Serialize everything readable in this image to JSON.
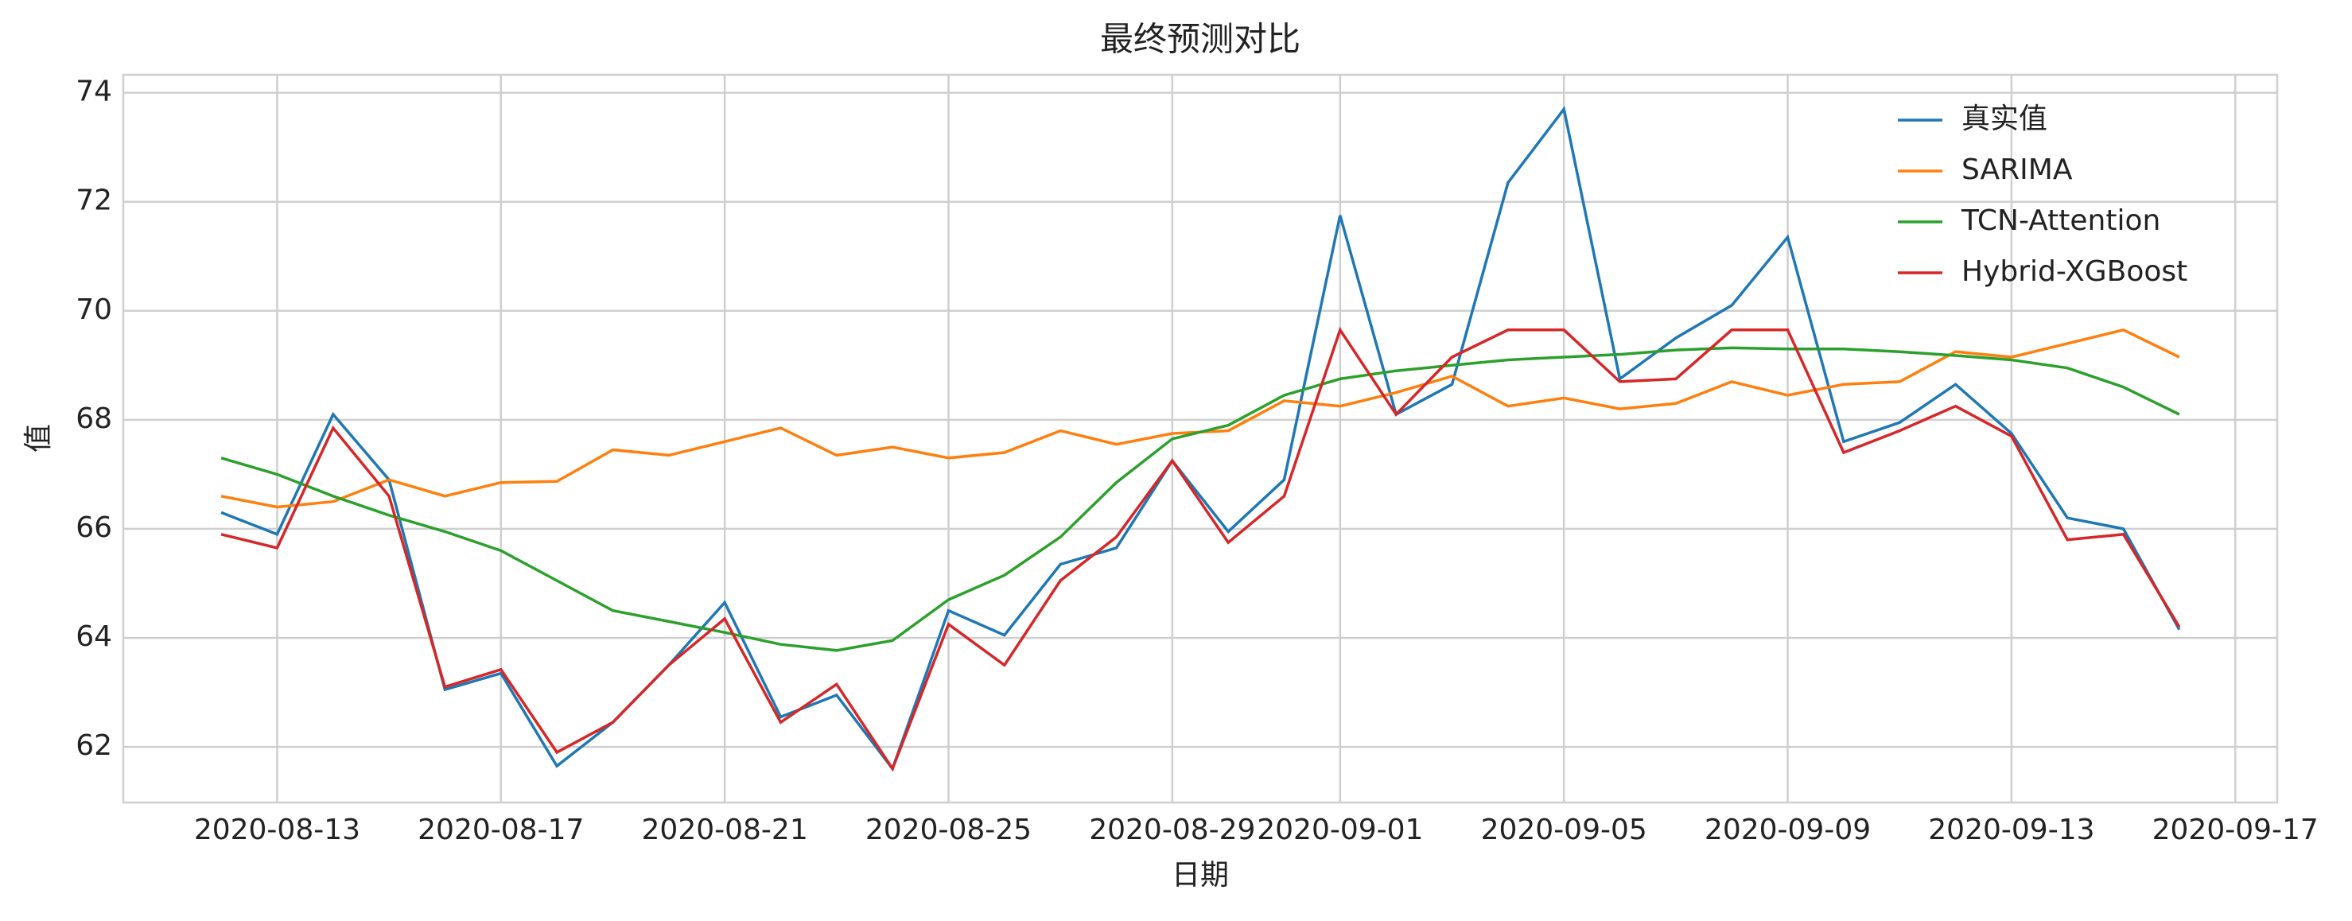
{
  "chart_data": {
    "type": "line",
    "title": "最终预测对比",
    "xlabel": "日期",
    "ylabel": "值",
    "x": [
      "2020-08-12",
      "2020-08-13",
      "2020-08-14",
      "2020-08-15",
      "2020-08-16",
      "2020-08-17",
      "2020-08-18",
      "2020-08-19",
      "2020-08-20",
      "2020-08-21",
      "2020-08-22",
      "2020-08-23",
      "2020-08-24",
      "2020-08-25",
      "2020-08-26",
      "2020-08-27",
      "2020-08-28",
      "2020-08-29",
      "2020-08-30",
      "2020-08-31",
      "2020-09-01",
      "2020-09-02",
      "2020-09-03",
      "2020-09-04",
      "2020-09-05",
      "2020-09-06",
      "2020-09-07",
      "2020-09-08",
      "2020-09-09",
      "2020-09-10",
      "2020-09-11",
      "2020-09-12",
      "2020-09-13",
      "2020-09-14",
      "2020-09-15",
      "2020-09-16"
    ],
    "series": [
      {
        "name": "真实值",
        "color": "#1f77b4",
        "values": [
          66.3,
          65.9,
          68.1,
          66.9,
          63.05,
          63.35,
          61.65,
          62.45,
          63.5,
          64.65,
          62.55,
          62.95,
          61.6,
          64.5,
          64.05,
          65.35,
          65.65,
          67.25,
          65.95,
          66.9,
          71.75,
          68.1,
          68.65,
          72.35,
          73.7,
          68.75,
          69.5,
          70.1,
          71.35,
          67.6,
          67.95,
          68.65,
          67.75,
          66.2,
          66.0,
          64.15
        ]
      },
      {
        "name": "SARIMA",
        "color": "#ff7f0e",
        "values": [
          66.6,
          66.4,
          66.5,
          66.9,
          66.6,
          66.85,
          66.87,
          67.45,
          67.35,
          67.6,
          67.85,
          67.35,
          67.5,
          67.3,
          67.4,
          67.8,
          67.55,
          67.75,
          67.8,
          68.35,
          68.25,
          68.5,
          68.8,
          68.25,
          68.4,
          68.2,
          68.3,
          68.7,
          68.45,
          68.65,
          68.7,
          69.25,
          69.15,
          69.4,
          69.65,
          69.15
        ]
      },
      {
        "name": "TCN-Attention",
        "color": "#2ca02c",
        "values": [
          67.3,
          67.0,
          66.6,
          66.25,
          65.95,
          65.6,
          65.05,
          64.5,
          64.3,
          64.1,
          63.88,
          63.77,
          63.95,
          64.7,
          65.15,
          65.85,
          66.85,
          67.65,
          67.9,
          68.45,
          68.75,
          68.9,
          69.0,
          69.1,
          69.15,
          69.2,
          69.28,
          69.32,
          69.3,
          69.3,
          69.25,
          69.18,
          69.1,
          68.95,
          68.6,
          68.1
        ]
      },
      {
        "name": "Hybrid-XGBoost",
        "color": "#d62728",
        "values": [
          65.9,
          65.65,
          67.85,
          66.6,
          63.1,
          63.42,
          61.9,
          62.45,
          63.5,
          64.35,
          62.45,
          63.15,
          61.6,
          64.25,
          63.5,
          65.05,
          65.85,
          67.25,
          65.75,
          66.6,
          69.65,
          68.1,
          69.15,
          69.65,
          69.65,
          68.7,
          68.75,
          69.65,
          69.65,
          67.4,
          67.8,
          68.25,
          67.7,
          65.8,
          65.9,
          64.2
        ]
      }
    ],
    "xlim": [
      "2020-08-10T06:00",
      "2020-09-17T18:00"
    ],
    "xticks": [
      "2020-08-13",
      "2020-08-17",
      "2020-08-21",
      "2020-08-25",
      "2020-08-29",
      "2020-09-01",
      "2020-09-05",
      "2020-09-09",
      "2020-09-13",
      "2020-09-17"
    ],
    "ylim": [
      60.98,
      74.33
    ],
    "yticks": [
      62,
      64,
      66,
      68,
      70,
      72,
      74
    ],
    "grid": true,
    "legend": "upper right"
  }
}
